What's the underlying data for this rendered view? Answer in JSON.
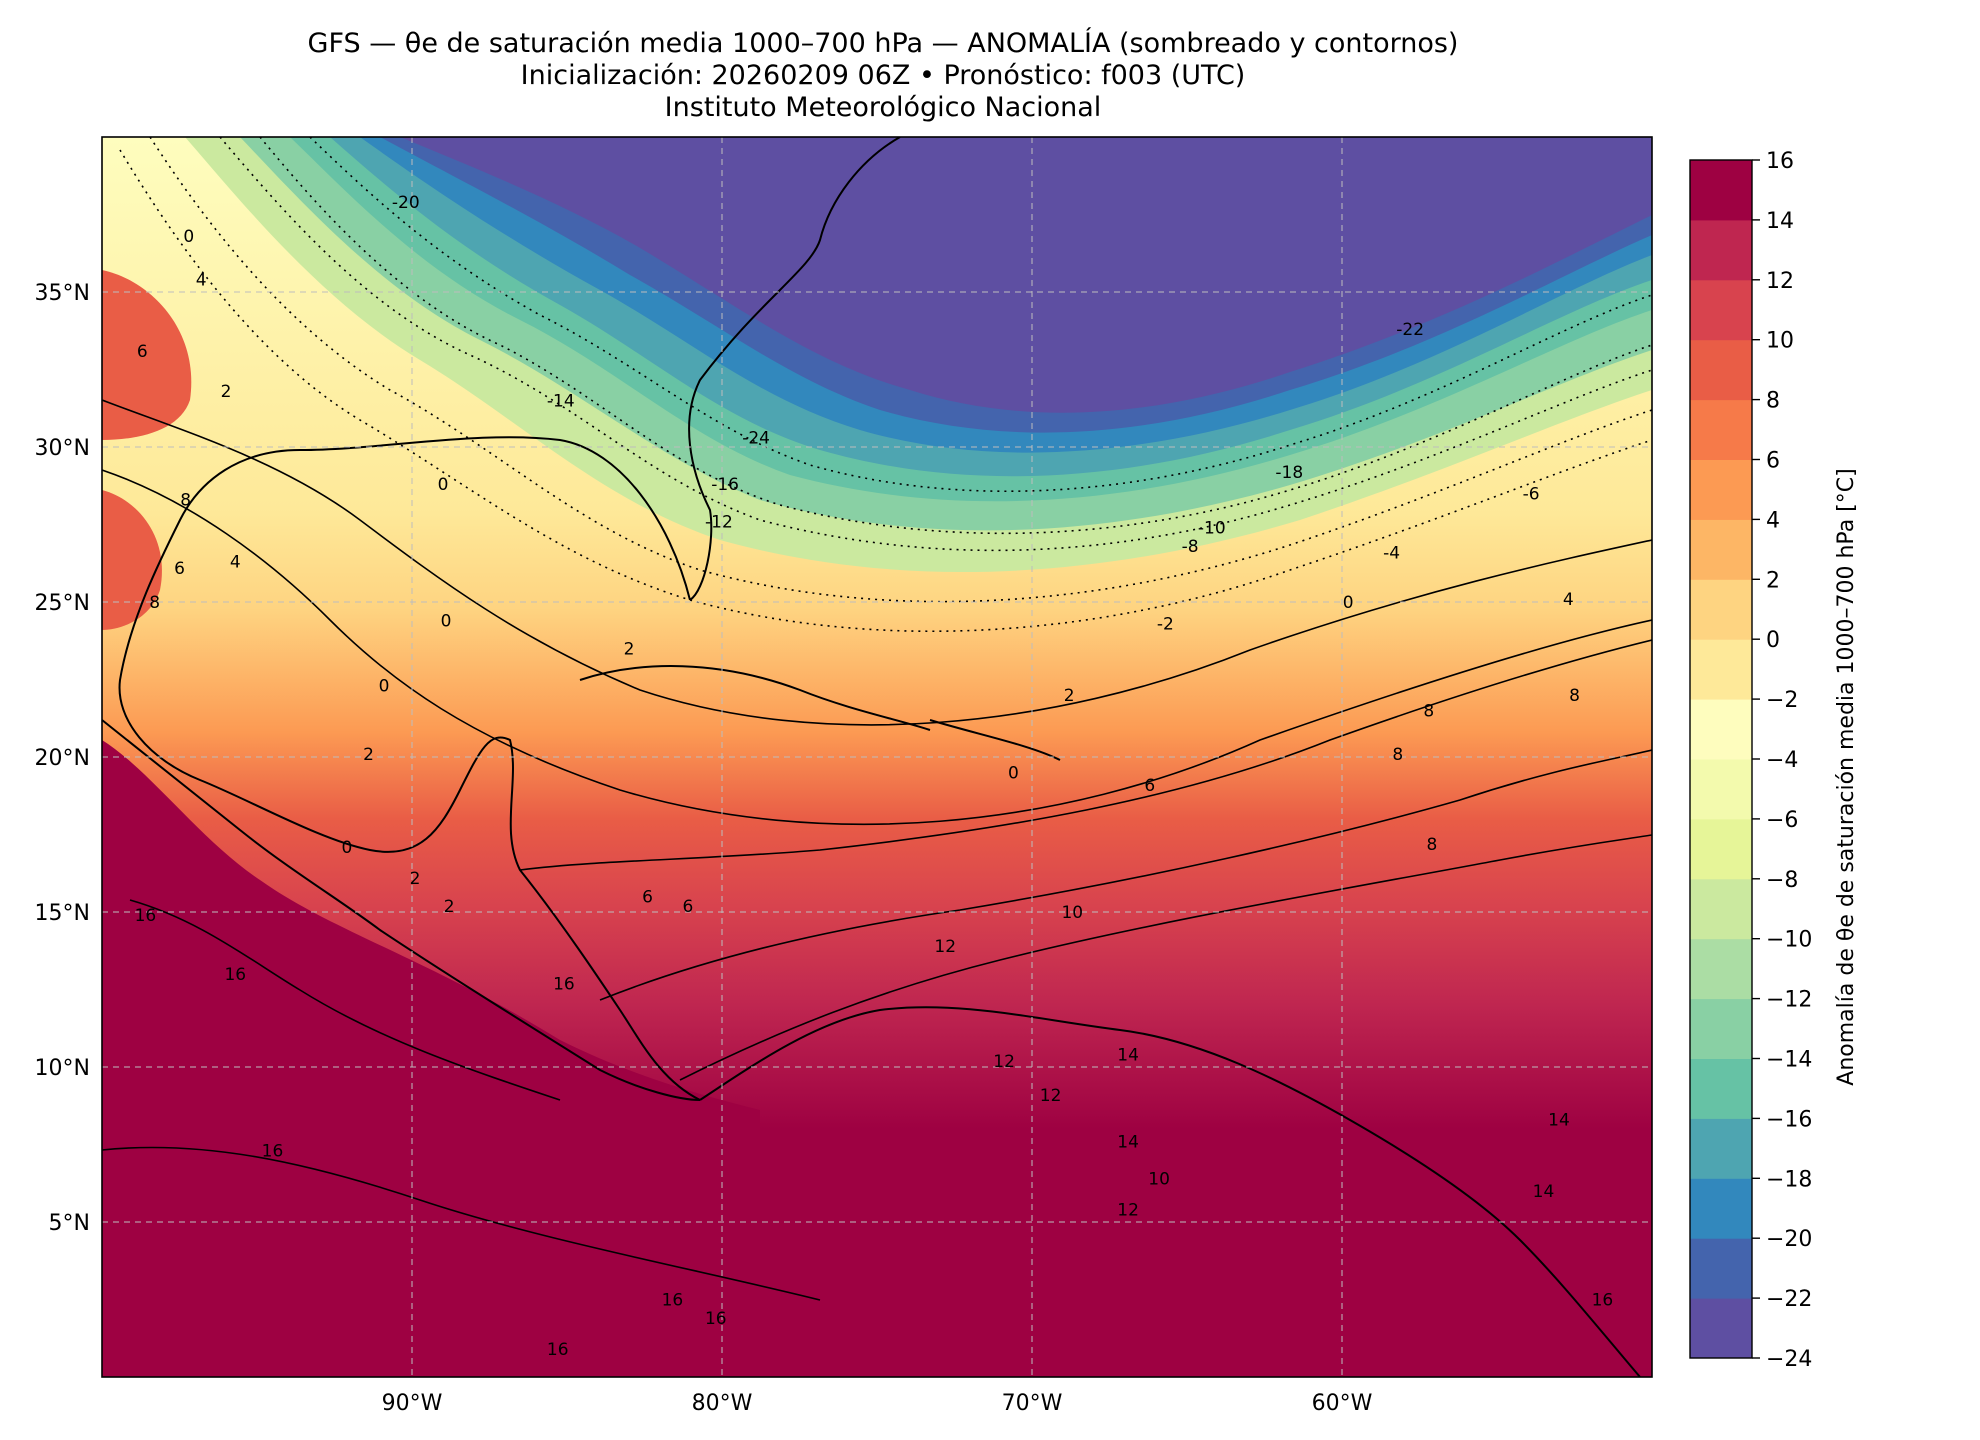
{
  "title": {
    "line1": "GFS — θe de saturación media 1000–700 hPa — ANOMALÍA (sombreado y contornos)",
    "line2": "Inicialización: 20260209 06Z   •   Pronóstico: f003 (UTC)",
    "line3": "Instituto Meteorológico Nacional"
  },
  "map": {
    "lon_range": [
      -100,
      -50
    ],
    "lat_range": [
      0,
      40
    ],
    "x_ticks": [
      {
        "lon": -90,
        "label": "90°W"
      },
      {
        "lon": -80,
        "label": "80°W"
      },
      {
        "lon": -70,
        "label": "70°W"
      },
      {
        "lon": -60,
        "label": "60°W"
      }
    ],
    "y_ticks": [
      {
        "lat": 35,
        "label": "35°N"
      },
      {
        "lat": 30,
        "label": "30°N"
      },
      {
        "lat": 25,
        "label": "25°N"
      },
      {
        "lat": 20,
        "label": "20°N"
      },
      {
        "lat": 15,
        "label": "15°N"
      },
      {
        "lat": 10,
        "label": "10°N"
      },
      {
        "lat": 5,
        "label": "5°N"
      }
    ],
    "gridlines": "dashed",
    "contour_labels": [
      {
        "lon": -90.2,
        "lat": 37.9,
        "text": "-20"
      },
      {
        "lon": -85.2,
        "lat": 31.5,
        "text": "-14"
      },
      {
        "lon": -78.9,
        "lat": 30.3,
        "text": "-24"
      },
      {
        "lon": -79.9,
        "lat": 28.8,
        "text": "-16"
      },
      {
        "lon": -80.1,
        "lat": 27.6,
        "text": "-12"
      },
      {
        "lon": -57.8,
        "lat": 33.8,
        "text": "-22"
      },
      {
        "lon": -61.7,
        "lat": 29.2,
        "text": "-18"
      },
      {
        "lon": -64.2,
        "lat": 27.4,
        "text": "-10"
      },
      {
        "lon": -64.9,
        "lat": 26.8,
        "text": "-8"
      },
      {
        "lon": -58.4,
        "lat": 26.6,
        "text": "-4"
      },
      {
        "lon": -53.9,
        "lat": 28.5,
        "text": "-6"
      },
      {
        "lon": -65.7,
        "lat": 24.3,
        "text": "-2"
      },
      {
        "lon": -59.8,
        "lat": 25.0,
        "text": "0"
      },
      {
        "lon": -52.7,
        "lat": 25.1,
        "text": "4"
      },
      {
        "lon": -52.5,
        "lat": 22.0,
        "text": "8"
      },
      {
        "lon": -68.8,
        "lat": 22.0,
        "text": "2"
      },
      {
        "lon": -66.2,
        "lat": 19.1,
        "text": "6"
      },
      {
        "lon": -57.2,
        "lat": 21.5,
        "text": "8"
      },
      {
        "lon": -58.2,
        "lat": 20.1,
        "text": "8"
      },
      {
        "lon": -57.1,
        "lat": 17.2,
        "text": "8"
      },
      {
        "lon": -70.6,
        "lat": 19.5,
        "text": "0"
      },
      {
        "lon": -68.7,
        "lat": 15.0,
        "text": "10"
      },
      {
        "lon": -72.8,
        "lat": 13.9,
        "text": "12"
      },
      {
        "lon": -70.9,
        "lat": 10.2,
        "text": "12"
      },
      {
        "lon": -69.4,
        "lat": 9.1,
        "text": "12"
      },
      {
        "lon": -66.9,
        "lat": 10.4,
        "text": "14"
      },
      {
        "lon": -66.9,
        "lat": 7.6,
        "text": "14"
      },
      {
        "lon": -53.0,
        "lat": 8.3,
        "text": "14"
      },
      {
        "lon": -53.5,
        "lat": 6.0,
        "text": "14"
      },
      {
        "lon": -65.9,
        "lat": 6.4,
        "text": "10"
      },
      {
        "lon": -66.9,
        "lat": 5.4,
        "text": "12"
      },
      {
        "lon": -51.6,
        "lat": 2.5,
        "text": "16"
      },
      {
        "lon": -85.1,
        "lat": 12.7,
        "text": "16"
      },
      {
        "lon": -95.7,
        "lat": 13.0,
        "text": "16"
      },
      {
        "lon": -94.5,
        "lat": 7.3,
        "text": "16"
      },
      {
        "lon": -81.6,
        "lat": 2.5,
        "text": "16"
      },
      {
        "lon": -80.2,
        "lat": 1.9,
        "text": "16"
      },
      {
        "lon": -85.3,
        "lat": 0.9,
        "text": "16"
      },
      {
        "lon": -98.3,
        "lat": 25.0,
        "text": "8"
      },
      {
        "lon": -97.5,
        "lat": 26.1,
        "text": "6"
      },
      {
        "lon": -97.3,
        "lat": 28.3,
        "text": "8"
      },
      {
        "lon": -98.7,
        "lat": 33.1,
        "text": "6"
      },
      {
        "lon": -96.8,
        "lat": 35.4,
        "text": "4"
      },
      {
        "lon": -96.0,
        "lat": 31.8,
        "text": "2"
      },
      {
        "lon": -95.7,
        "lat": 26.3,
        "text": "4"
      },
      {
        "lon": -97.2,
        "lat": 36.8,
        "text": "0"
      },
      {
        "lon": -88.9,
        "lat": 24.4,
        "text": "0"
      },
      {
        "lon": -90.9,
        "lat": 22.3,
        "text": "0"
      },
      {
        "lon": -91.4,
        "lat": 20.1,
        "text": "2"
      },
      {
        "lon": -92.1,
        "lat": 17.1,
        "text": "0"
      },
      {
        "lon": -89.9,
        "lat": 16.1,
        "text": "2"
      },
      {
        "lon": -88.8,
        "lat": 15.2,
        "text": "2"
      },
      {
        "lon": -82.4,
        "lat": 15.5,
        "text": "6"
      },
      {
        "lon": -81.1,
        "lat": 15.2,
        "text": "6"
      },
      {
        "lon": -83.0,
        "lat": 23.5,
        "text": "2"
      },
      {
        "lon": -89.0,
        "lat": 28.8,
        "text": "0"
      },
      {
        "lon": -98.6,
        "lat": 14.9,
        "text": "16"
      }
    ]
  },
  "colorbar": {
    "label": "Anomalía de θe de saturación media 1000–700 hPa [°C]",
    "levels": [
      -24,
      -22,
      -20,
      -18,
      -16,
      -14,
      -12,
      -10,
      -8,
      -6,
      -4,
      -2,
      0,
      2,
      4,
      6,
      8,
      10,
      12,
      14,
      16
    ],
    "tick_labels": [
      "−24",
      "−22",
      "−20",
      "−18",
      "−16",
      "−14",
      "−12",
      "−10",
      "−8",
      "−6",
      "−4",
      "−2",
      "0",
      "2",
      "4",
      "6",
      "8",
      "10",
      "12",
      "14",
      "16"
    ],
    "colors": [
      "#5e4fa2",
      "#4464ad",
      "#3288bd",
      "#4ea5b1",
      "#66c2a5",
      "#89d0a4",
      "#abdda4",
      "#cbe99f",
      "#e6f598",
      "#f3faad",
      "#fefdbe",
      "#fee999",
      "#fed481",
      "#fdb665",
      "#fc9a53",
      "#f67a49",
      "#e95d46",
      "#d8434e",
      "#bf2650",
      "#9e0142"
    ]
  }
}
